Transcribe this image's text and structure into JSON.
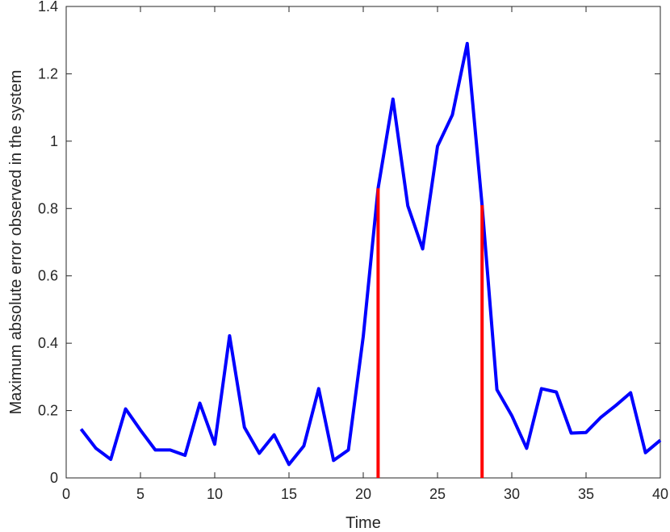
{
  "chart_data": {
    "type": "line",
    "title": "",
    "xlabel": "Time",
    "ylabel": "Maximum absolute error observed in the system",
    "xlim": [
      0,
      40
    ],
    "ylim": [
      0,
      1.4
    ],
    "xticks": [
      "0",
      "5",
      "10",
      "15",
      "20",
      "25",
      "30",
      "35",
      "40"
    ],
    "yticks": [
      "0",
      "0.2",
      "0.4",
      "0.6",
      "0.8",
      "1",
      "1.2",
      "1.4"
    ],
    "grid": false,
    "series": [
      {
        "color": "#0000ff",
        "x": [
          1,
          2,
          3,
          4,
          5,
          6,
          7,
          8,
          9,
          10,
          11,
          12,
          13,
          14,
          15,
          16,
          17,
          18,
          19,
          20,
          21,
          22,
          23,
          24,
          25,
          26,
          27,
          28,
          29,
          30,
          31,
          32,
          33,
          34,
          35,
          36,
          37,
          38,
          39,
          40
        ],
        "y": [
          0.145,
          0.088,
          0.055,
          0.205,
          0.142,
          0.083,
          0.083,
          0.067,
          0.222,
          0.1,
          0.422,
          0.15,
          0.073,
          0.128,
          0.04,
          0.095,
          0.265,
          0.052,
          0.083,
          0.42,
          0.86,
          1.125,
          0.808,
          0.68,
          0.985,
          1.078,
          1.29,
          0.81,
          0.262,
          0.185,
          0.088,
          0.265,
          0.255,
          0.133,
          0.135,
          0.18,
          0.215,
          0.253,
          0.075,
          0.112
        ]
      }
    ],
    "markers": [
      {
        "color": "#ff0000",
        "x": 21,
        "y": 0.86
      },
      {
        "color": "#ff0000",
        "x": 28,
        "y": 0.81
      }
    ]
  }
}
